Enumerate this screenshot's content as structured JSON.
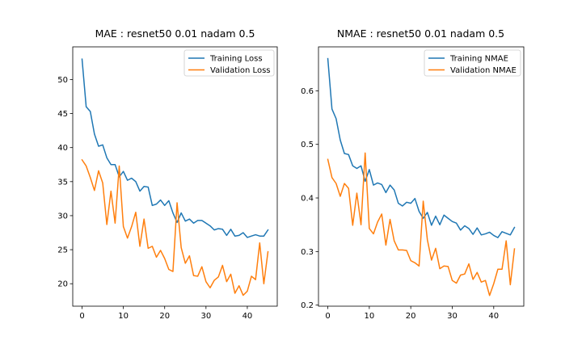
{
  "chart_data": [
    {
      "type": "line",
      "title": "MAE : resnet50 0.01 nadam 0.5",
      "xlabel": "",
      "ylabel": "",
      "xlim": [
        -2.25,
        47.25
      ],
      "ylim": [
        16.7,
        54.8
      ],
      "xticks": [
        0,
        10,
        20,
        30,
        40
      ],
      "yticks": [
        20,
        25,
        30,
        35,
        40,
        45,
        50
      ],
      "grid": false,
      "legend_position": "top-right",
      "x": [
        0,
        1,
        2,
        3,
        4,
        5,
        6,
        7,
        8,
        9,
        10,
        11,
        12,
        13,
        14,
        15,
        16,
        17,
        18,
        19,
        20,
        21,
        22,
        23,
        24,
        25,
        26,
        27,
        28,
        29,
        30,
        31,
        32,
        33,
        34,
        35,
        36,
        37,
        38,
        39,
        40,
        41,
        42,
        43,
        44,
        45
      ],
      "series": [
        {
          "name": "Training Loss",
          "color": "#1f77b4",
          "values": [
            53.0,
            46.0,
            45.3,
            42.0,
            40.2,
            40.4,
            38.5,
            37.5,
            37.5,
            35.7,
            36.5,
            35.2,
            35.5,
            35.0,
            33.6,
            34.3,
            34.2,
            31.5,
            31.7,
            32.3,
            31.5,
            32.2,
            30.4,
            29.0,
            30.4,
            29.2,
            29.5,
            28.9,
            29.3,
            29.3,
            28.9,
            28.5,
            27.9,
            28.1,
            28.0,
            27.1,
            28.0,
            27.0,
            27.1,
            27.5,
            26.8,
            27.0,
            27.2,
            27.0,
            27.0,
            27.9
          ]
        },
        {
          "name": "Validation Loss",
          "color": "#ff7f0e",
          "values": [
            38.2,
            37.3,
            35.6,
            33.7,
            36.6,
            34.8,
            28.7,
            33.6,
            28.9,
            37.3,
            28.4,
            26.7,
            28.4,
            30.5,
            25.5,
            29.5,
            25.2,
            25.5,
            23.9,
            24.9,
            23.7,
            22.1,
            21.8,
            31.9,
            25.3,
            23.0,
            24.1,
            21.2,
            21.1,
            22.5,
            20.3,
            19.4,
            20.5,
            21.0,
            22.7,
            20.3,
            21.4,
            18.6,
            19.7,
            18.3,
            18.9,
            21.1,
            20.6,
            26.0,
            20.0,
            24.7
          ]
        }
      ]
    },
    {
      "type": "line",
      "title": "NMAE : resnet50 0.01 nadam 0.5",
      "xlabel": "",
      "ylabel": "",
      "xlim": [
        -2.25,
        47.25
      ],
      "ylim": [
        0.198,
        0.682
      ],
      "xticks": [
        0,
        10,
        20,
        30,
        40
      ],
      "yticks": [
        0.2,
        0.3,
        0.4,
        0.5,
        0.6
      ],
      "ytick_labels": [
        "0.2",
        "0.3",
        "0.4",
        "0.5",
        "0.6"
      ],
      "grid": false,
      "legend_position": "top-right",
      "x": [
        0,
        1,
        2,
        3,
        4,
        5,
        6,
        7,
        8,
        9,
        10,
        11,
        12,
        13,
        14,
        15,
        16,
        17,
        18,
        19,
        20,
        21,
        22,
        23,
        24,
        25,
        26,
        27,
        28,
        29,
        30,
        31,
        32,
        33,
        34,
        35,
        36,
        37,
        38,
        39,
        40,
        41,
        42,
        43,
        44,
        45
      ],
      "series": [
        {
          "name": "Training NMAE",
          "color": "#1f77b4",
          "values": [
            0.66,
            0.566,
            0.548,
            0.508,
            0.483,
            0.481,
            0.46,
            0.455,
            0.46,
            0.431,
            0.453,
            0.424,
            0.428,
            0.425,
            0.41,
            0.424,
            0.415,
            0.39,
            0.385,
            0.392,
            0.39,
            0.399,
            0.375,
            0.362,
            0.373,
            0.349,
            0.366,
            0.35,
            0.368,
            0.362,
            0.356,
            0.353,
            0.34,
            0.348,
            0.343,
            0.332,
            0.344,
            0.331,
            0.333,
            0.336,
            0.33,
            0.326,
            0.337,
            0.334,
            0.331,
            0.345
          ]
        },
        {
          "name": "Validation NMAE",
          "color": "#ff7f0e",
          "values": [
            0.472,
            0.438,
            0.427,
            0.403,
            0.427,
            0.418,
            0.349,
            0.409,
            0.35,
            0.484,
            0.343,
            0.333,
            0.355,
            0.37,
            0.312,
            0.36,
            0.32,
            0.303,
            0.303,
            0.302,
            0.283,
            0.279,
            0.273,
            0.394,
            0.322,
            0.284,
            0.306,
            0.268,
            0.273,
            0.272,
            0.246,
            0.241,
            0.256,
            0.258,
            0.277,
            0.248,
            0.261,
            0.243,
            0.246,
            0.218,
            0.24,
            0.267,
            0.267,
            0.32,
            0.238,
            0.305
          ]
        }
      ]
    }
  ]
}
